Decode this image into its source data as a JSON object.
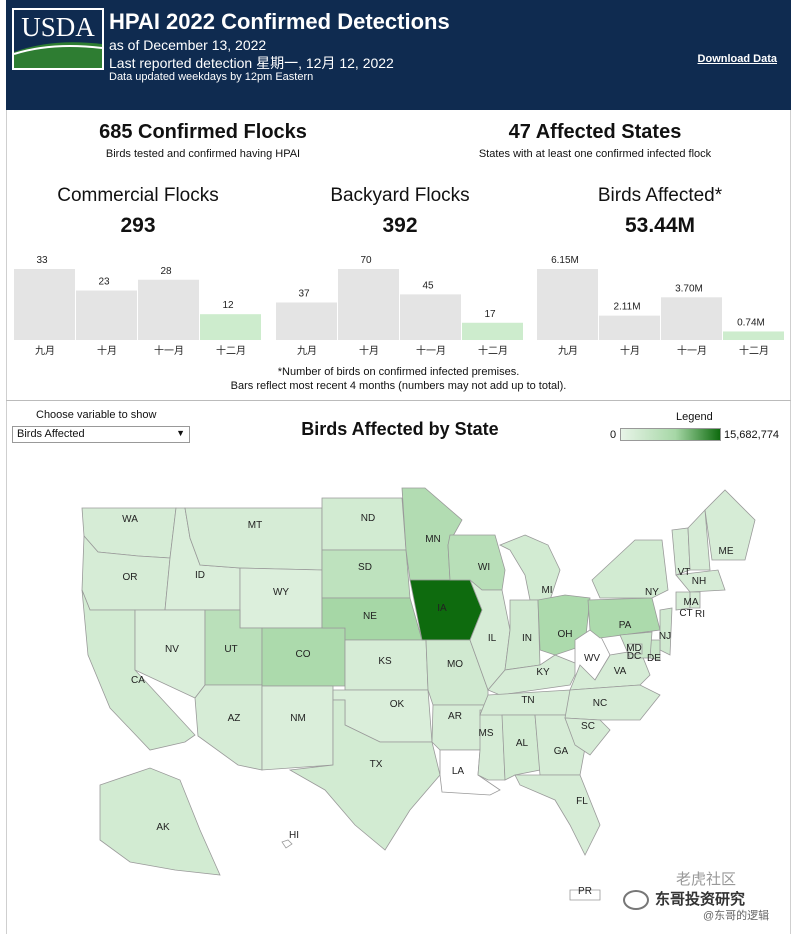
{
  "header": {
    "logo_text": "USDA",
    "title": "HPAI 2022 Confirmed Detections",
    "as_of": "as of December 13, 2022",
    "last_detection": "Last reported detection 星期一, 12月 12, 2022",
    "update_note": "Data updated weekdays by 12pm Eastern",
    "download_label": "Download Data",
    "colors": {
      "background": "#0f2b50",
      "logo_green": "#2e7d32"
    }
  },
  "kpis": {
    "flocks": {
      "value": "685 Confirmed Flocks",
      "sub": "Birds tested and confirmed having HPAI"
    },
    "states": {
      "value": "47 Affected States",
      "sub": "States with at least one confirmed infected flock"
    }
  },
  "cards": [
    {
      "title": "Commercial Flocks",
      "value": "293"
    },
    {
      "title": "Backyard Flocks",
      "value": "392"
    },
    {
      "title": "Birds Affected*",
      "value": "53.44M"
    }
  ],
  "chart_data": [
    {
      "type": "bar",
      "categories": [
        "九月",
        "十月",
        "十一月",
        "十二月"
      ],
      "values": [
        33,
        23,
        28,
        12
      ],
      "labels": [
        "33",
        "23",
        "28",
        "12"
      ],
      "ylim": [
        0,
        33
      ],
      "highlight_index": 3
    },
    {
      "type": "bar",
      "categories": [
        "九月",
        "十月",
        "十一月",
        "十二月"
      ],
      "values": [
        37,
        70,
        45,
        17
      ],
      "labels": [
        "37",
        "70",
        "45",
        "17"
      ],
      "ylim": [
        0,
        70
      ],
      "highlight_index": 3
    },
    {
      "type": "bar",
      "categories": [
        "九月",
        "十月",
        "十一月",
        "十二月"
      ],
      "values": [
        6.15,
        2.11,
        3.7,
        0.74
      ],
      "labels": [
        "6.15M",
        "2.11M",
        "3.70M",
        "0.74M"
      ],
      "ylim": [
        0,
        6.15
      ],
      "highlight_index": 3
    }
  ],
  "notes": {
    "line1": "*Number of birds on confirmed infected premises.",
    "line2": "Bars reflect most recent 4 months (numbers may not add up to total)."
  },
  "map": {
    "choose_label": "Choose variable to show",
    "selected_variable": "Birds Affected",
    "title": "Birds Affected by State",
    "legend_title": "Legend",
    "legend_min": "0",
    "legend_max": "15,682,774",
    "colors": {
      "low": "#e8f4e8",
      "mid": "#a6d7a6",
      "high": "#0e6b0e",
      "none": "#ffffff",
      "bar_gray": "#e4e4e4",
      "bar_highlight": "#cdeccd"
    },
    "states": [
      {
        "abbr": "WA",
        "level": 0.15
      },
      {
        "abbr": "OR",
        "level": 0.15
      },
      {
        "abbr": "CA",
        "level": 0.18
      },
      {
        "abbr": "ID",
        "level": 0.12
      },
      {
        "abbr": "MT",
        "level": 0.15
      },
      {
        "abbr": "WY",
        "level": 0.1
      },
      {
        "abbr": "NV",
        "level": 0.12
      },
      {
        "abbr": "UT",
        "level": 0.38
      },
      {
        "abbr": "CO",
        "level": 0.5
      },
      {
        "abbr": "AZ",
        "level": 0.15
      },
      {
        "abbr": "NM",
        "level": 0.12
      },
      {
        "abbr": "ND",
        "level": 0.18
      },
      {
        "abbr": "SD",
        "level": 0.35
      },
      {
        "abbr": "NE",
        "level": 0.55
      },
      {
        "abbr": "KS",
        "level": 0.15
      },
      {
        "abbr": "OK",
        "level": 0.12
      },
      {
        "abbr": "TX",
        "level": 0.18
      },
      {
        "abbr": "MN",
        "level": 0.45
      },
      {
        "abbr": "IA",
        "level": 1.0
      },
      {
        "abbr": "MO",
        "level": 0.2
      },
      {
        "abbr": "AR",
        "level": 0.15
      },
      {
        "abbr": "LA",
        "level": 0
      },
      {
        "abbr": "WI",
        "level": 0.4
      },
      {
        "abbr": "IL",
        "level": 0.15
      },
      {
        "abbr": "MS",
        "level": 0.15
      },
      {
        "abbr": "MI",
        "level": 0.18
      },
      {
        "abbr": "IN",
        "level": 0.2
      },
      {
        "abbr": "KY",
        "level": 0.15
      },
      {
        "abbr": "TN",
        "level": 0.15
      },
      {
        "abbr": "AL",
        "level": 0.18
      },
      {
        "abbr": "GA",
        "level": 0.15
      },
      {
        "abbr": "FL",
        "level": 0.15
      },
      {
        "abbr": "OH",
        "level": 0.5
      },
      {
        "abbr": "WV",
        "level": 0
      },
      {
        "abbr": "VA",
        "level": 0.15
      },
      {
        "abbr": "NC",
        "level": 0.15
      },
      {
        "abbr": "SC",
        "level": 0.15
      },
      {
        "abbr": "PA",
        "level": 0.5
      },
      {
        "abbr": "NY",
        "level": 0.18
      },
      {
        "abbr": "VT",
        "level": 0.15
      },
      {
        "abbr": "NH",
        "level": 0.15
      },
      {
        "abbr": "ME",
        "level": 0.15
      },
      {
        "abbr": "MA",
        "level": 0.15
      },
      {
        "abbr": "CT",
        "level": 0.15
      },
      {
        "abbr": "RI",
        "level": 0.15
      },
      {
        "abbr": "NJ",
        "level": 0.2
      },
      {
        "abbr": "DE",
        "level": 0.25
      },
      {
        "abbr": "MD",
        "level": 0.25
      },
      {
        "abbr": "DC",
        "level": 0.15
      },
      {
        "abbr": "AK",
        "level": 0.18
      },
      {
        "abbr": "HI",
        "level": 0
      },
      {
        "abbr": "PR",
        "level": 0
      }
    ]
  },
  "watermark": {
    "line1": "老虎社区",
    "line2": "东哥投资研究",
    "line3": "@东哥的逻辑"
  }
}
